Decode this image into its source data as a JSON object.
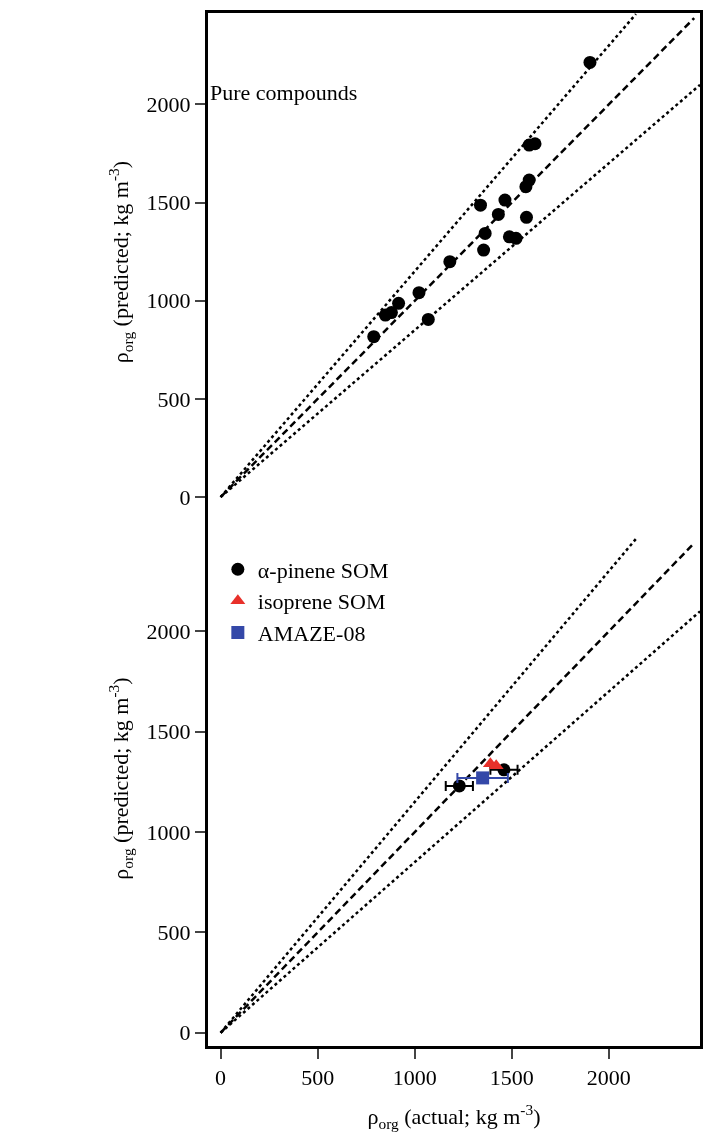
{
  "chart_data": [
    {
      "type": "scatter",
      "annotations": [
        "Pure compounds"
      ],
      "ylabel": "ρ$_{org}$ (predicted; kg m$^{-3}$)",
      "xlim": [
        -65,
        2470
      ],
      "ylim": [
        -71,
        2466
      ],
      "xticks": [
        0,
        500,
        1000,
        1500,
        2000
      ],
      "yticks": [
        0,
        500,
        1000,
        1500,
        2000
      ],
      "tick_labels": "y",
      "grid": false,
      "legend": false,
      "series": [
        {
          "type": "line",
          "color": "#000000",
          "line_style": "dotted",
          "x": [
            0,
            2140
          ],
          "values": [
            0,
            2461
          ]
        },
        {
          "type": "line",
          "color": "#000000",
          "line_style": "dashed",
          "x": [
            0,
            2440
          ],
          "values": [
            0,
            2440
          ]
        },
        {
          "type": "line",
          "color": "#000000",
          "line_style": "dotted",
          "x": [
            0,
            2470
          ],
          "values": [
            0,
            2100
          ]
        },
        {
          "color": "#000000",
          "marker": "circle",
          "x": [
            1903,
            1590,
            1620,
            1590,
            1573,
            1339,
            1465,
            1431,
            1576,
            1363,
            1488,
            1522,
            1355,
            1181,
            1022,
            917,
            880,
            849,
            1070,
            789
          ],
          "values": [
            2214,
            1793,
            1800,
            1615,
            1581,
            1487,
            1513,
            1440,
            1425,
            1343,
            1326,
            1318,
            1258,
            1199,
            1041,
            987,
            940,
            927,
            905,
            817
          ]
        }
      ]
    },
    {
      "type": "scatter",
      "xlabel": "ρ$_{org}$ (actual; kg m$^{-3}$)",
      "ylabel": "ρ$_{org}$ (predicted; kg m$^{-3}$)",
      "xlim": [
        -65,
        2470
      ],
      "ylim": [
        -66,
        2600
      ],
      "xticks": [
        0,
        500,
        1000,
        1500,
        2000
      ],
      "yticks": [
        0,
        500,
        1000,
        1500,
        2000
      ],
      "grid": false,
      "legend": "top left",
      "series": [
        {
          "type": "line",
          "color": "#000000",
          "line_style": "dotted",
          "x": [
            0,
            2140
          ],
          "values": [
            0,
            2461
          ]
        },
        {
          "type": "line",
          "color": "#000000",
          "line_style": "dashed",
          "x": [
            0,
            2440
          ],
          "values": [
            0,
            2440
          ]
        },
        {
          "type": "line",
          "color": "#000000",
          "line_style": "dotted",
          "x": [
            0,
            2470
          ],
          "values": [
            0,
            2100
          ]
        },
        {
          "name": "α-pinene SOM",
          "color": "#000000",
          "marker": "circle",
          "x": [
            1230,
            1330,
            1460
          ],
          "values": [
            1230,
            null,
            1310
          ],
          "xerrors": [
            70,
            null,
            70
          ]
        },
        {
          "name": "isoprene SOM",
          "color": "#e8302a",
          "marker": "triangle",
          "x": [
            1390,
            1420
          ],
          "values": [
            1340,
            1330
          ]
        },
        {
          "name": "AMAZE-08",
          "color": "#3448a8",
          "marker": "square",
          "x": [
            1350
          ],
          "values": [
            1270
          ],
          "xerrors": [
            130
          ]
        }
      ]
    }
  ]
}
